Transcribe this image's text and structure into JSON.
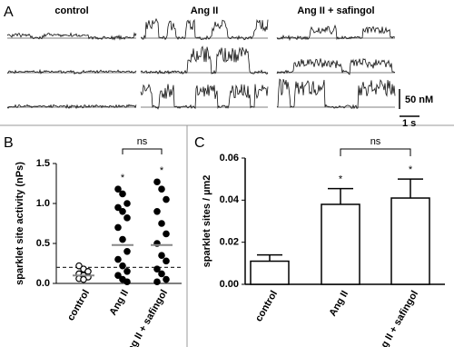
{
  "chart_data": [
    {
      "type": "traces",
      "panel_label": "A",
      "conditions": [
        "control",
        "Ang II",
        "Ang II + safingol"
      ],
      "scale_bar": {
        "y_label": "50 nM",
        "x_label": "1 s"
      }
    },
    {
      "type": "dot",
      "panel_label": "B",
      "y_label": "sparklet site activity (nPs)",
      "categories": [
        "control",
        "Ang II",
        "Ang II + safingol"
      ],
      "points": [
        [
          0.22,
          0.18,
          0.15,
          0.12,
          0.1,
          0.08,
          0.06,
          0.05
        ],
        [
          1.18,
          1.12,
          1.0,
          0.95,
          0.9,
          0.82,
          0.7,
          0.55,
          0.4,
          0.3,
          0.22,
          0.15,
          0.1,
          0.05,
          0.02
        ],
        [
          1.27,
          1.18,
          1.05,
          0.9,
          0.75,
          0.62,
          0.5,
          0.35,
          0.28,
          0.18,
          0.12,
          0.05,
          0.02
        ]
      ],
      "filled": [
        false,
        true,
        true
      ],
      "means": [
        0.1,
        0.48,
        0.48
      ],
      "threshold": 0.2,
      "ylim": [
        0,
        1.5
      ],
      "yticks": [
        {
          "value": 0,
          "label": "0.0"
        },
        {
          "value": 0.5,
          "label": "0.5"
        },
        {
          "value": 1,
          "label": "1.0"
        },
        {
          "value": 1.5,
          "label": "1.5"
        }
      ],
      "stars": [
        "*",
        "*"
      ],
      "comparison": "ns"
    },
    {
      "type": "bar",
      "panel_label": "C",
      "y_label": "sparklet sites / µm2",
      "categories": [
        "control",
        "Ang II",
        "Ang II + safingol"
      ],
      "values": [
        0.011,
        0.038,
        0.041
      ],
      "errors": [
        0.003,
        0.0075,
        0.009
      ],
      "color": "#ffffff",
      "ylim": [
        0,
        0.06
      ],
      "yticks": [
        {
          "value": 0,
          "label": "0.00"
        },
        {
          "value": 0.02,
          "label": "0.02"
        },
        {
          "value": 0.04,
          "label": "0.04"
        },
        {
          "value": 0.06,
          "label": "0.06"
        }
      ],
      "stars": [
        "*",
        "*"
      ],
      "comparison": "ns"
    }
  ]
}
